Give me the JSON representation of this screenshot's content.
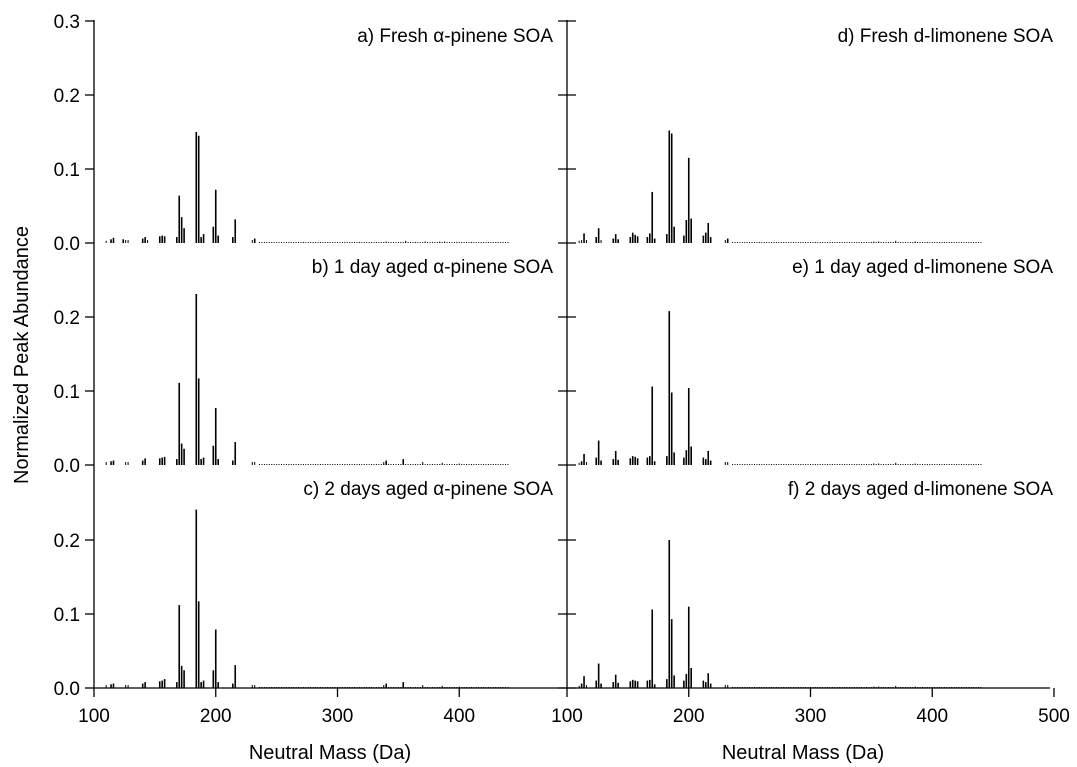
{
  "chart_data": {
    "type": "bar",
    "ylabel": "Normalized Peak Abundance",
    "xlabel": "Neutral Mass (Da)",
    "y_tick_labels": [
      "0.0",
      "0.1",
      "0.2",
      "0.3"
    ],
    "y_tick_values": [
      0.0,
      0.1,
      0.2,
      0.3
    ],
    "left_x_tick_labels": [
      "100",
      "200",
      "300",
      "400"
    ],
    "left_x_tick_values": [
      100,
      200,
      300,
      400
    ],
    "right_x_tick_labels": [
      "100",
      "200",
      "300",
      "400",
      "500"
    ],
    "right_x_tick_values": [
      100,
      200,
      300,
      400,
      500
    ],
    "panels": [
      {
        "label": "a) Fresh α-pinene SOA",
        "column": "left",
        "row": 0,
        "xlim": [
          100,
          500
        ],
        "ylim": [
          0,
          0.3
        ],
        "peaks": [
          [
            110,
            0.003
          ],
          [
            114,
            0.005
          ],
          [
            116,
            0.007
          ],
          [
            124,
            0.005
          ],
          [
            126,
            0.004
          ],
          [
            128,
            0.004
          ],
          [
            140,
            0.006
          ],
          [
            142,
            0.008
          ],
          [
            144,
            0.004
          ],
          [
            154,
            0.009
          ],
          [
            156,
            0.01
          ],
          [
            158,
            0.009
          ],
          [
            168,
            0.008
          ],
          [
            170,
            0.064
          ],
          [
            172,
            0.035
          ],
          [
            174,
            0.02
          ],
          [
            184,
            0.15
          ],
          [
            186,
            0.145
          ],
          [
            188,
            0.008
          ],
          [
            190,
            0.012
          ],
          [
            198,
            0.022
          ],
          [
            200,
            0.072
          ],
          [
            202,
            0.01
          ],
          [
            214,
            0.008
          ],
          [
            216,
            0.032
          ],
          [
            230,
            0.004
          ],
          [
            232,
            0.006
          ],
          [
            340,
            0.002
          ],
          [
            356,
            0.003
          ],
          [
            372,
            0.002
          ],
          [
            384,
            0.002
          ],
          [
            388,
            0.002
          ]
        ]
      },
      {
        "label": "b) 1 day aged α-pinene SOA",
        "column": "left",
        "row": 1,
        "xlim": [
          100,
          500
        ],
        "ylim": [
          0,
          0.3
        ],
        "peaks": [
          [
            110,
            0.004
          ],
          [
            114,
            0.005
          ],
          [
            116,
            0.006
          ],
          [
            126,
            0.004
          ],
          [
            128,
            0.004
          ],
          [
            140,
            0.006
          ],
          [
            142,
            0.009
          ],
          [
            154,
            0.009
          ],
          [
            156,
            0.01
          ],
          [
            158,
            0.011
          ],
          [
            168,
            0.008
          ],
          [
            170,
            0.111
          ],
          [
            172,
            0.029
          ],
          [
            174,
            0.022
          ],
          [
            184,
            0.231
          ],
          [
            186,
            0.117
          ],
          [
            188,
            0.008
          ],
          [
            190,
            0.01
          ],
          [
            198,
            0.026
          ],
          [
            200,
            0.077
          ],
          [
            202,
            0.008
          ],
          [
            214,
            0.006
          ],
          [
            216,
            0.031
          ],
          [
            230,
            0.004
          ],
          [
            232,
            0.004
          ],
          [
            338,
            0.004
          ],
          [
            340,
            0.006
          ],
          [
            354,
            0.008
          ],
          [
            370,
            0.004
          ],
          [
            386,
            0.003
          ],
          [
            400,
            0.002
          ]
        ]
      },
      {
        "label": "c) 2 days aged α-pinene SOA",
        "column": "left",
        "row": 2,
        "xlim": [
          100,
          500
        ],
        "ylim": [
          0,
          0.3
        ],
        "peaks": [
          [
            110,
            0.004
          ],
          [
            114,
            0.005
          ],
          [
            116,
            0.006
          ],
          [
            126,
            0.004
          ],
          [
            128,
            0.004
          ],
          [
            140,
            0.006
          ],
          [
            142,
            0.008
          ],
          [
            154,
            0.009
          ],
          [
            156,
            0.01
          ],
          [
            158,
            0.012
          ],
          [
            168,
            0.008
          ],
          [
            170,
            0.112
          ],
          [
            172,
            0.03
          ],
          [
            174,
            0.024
          ],
          [
            184,
            0.241
          ],
          [
            186,
            0.117
          ],
          [
            188,
            0.008
          ],
          [
            190,
            0.01
          ],
          [
            198,
            0.024
          ],
          [
            200,
            0.079
          ],
          [
            202,
            0.008
          ],
          [
            214,
            0.006
          ],
          [
            216,
            0.031
          ],
          [
            230,
            0.004
          ],
          [
            232,
            0.004
          ],
          [
            338,
            0.004
          ],
          [
            340,
            0.006
          ],
          [
            354,
            0.008
          ],
          [
            370,
            0.004
          ],
          [
            386,
            0.003
          ],
          [
            400,
            0.002
          ]
        ]
      },
      {
        "label": "d) Fresh d-limonene SOA",
        "column": "right",
        "row": 0,
        "xlim": [
          100,
          500
        ],
        "ylim": [
          0,
          0.3
        ],
        "peaks": [
          [
            110,
            0.003
          ],
          [
            112,
            0.004
          ],
          [
            114,
            0.013
          ],
          [
            116,
            0.004
          ],
          [
            124,
            0.008
          ],
          [
            126,
            0.02
          ],
          [
            128,
            0.004
          ],
          [
            138,
            0.006
          ],
          [
            140,
            0.012
          ],
          [
            142,
            0.005
          ],
          [
            152,
            0.008
          ],
          [
            154,
            0.014
          ],
          [
            156,
            0.011
          ],
          [
            158,
            0.009
          ],
          [
            166,
            0.008
          ],
          [
            168,
            0.013
          ],
          [
            170,
            0.069
          ],
          [
            172,
            0.006
          ],
          [
            182,
            0.012
          ],
          [
            184,
            0.152
          ],
          [
            186,
            0.148
          ],
          [
            188,
            0.022
          ],
          [
            196,
            0.01
          ],
          [
            198,
            0.031
          ],
          [
            200,
            0.115
          ],
          [
            202,
            0.033
          ],
          [
            212,
            0.01
          ],
          [
            214,
            0.014
          ],
          [
            216,
            0.027
          ],
          [
            218,
            0.008
          ],
          [
            230,
            0.004
          ],
          [
            232,
            0.006
          ],
          [
            352,
            0.002
          ],
          [
            356,
            0.002
          ],
          [
            370,
            0.003
          ],
          [
            386,
            0.002
          ]
        ]
      },
      {
        "label": "e) 1 day aged d-limonene SOA",
        "column": "right",
        "row": 1,
        "xlim": [
          100,
          500
        ],
        "ylim": [
          0,
          0.3
        ],
        "peaks": [
          [
            110,
            0.003
          ],
          [
            112,
            0.005
          ],
          [
            114,
            0.015
          ],
          [
            116,
            0.004
          ],
          [
            124,
            0.01
          ],
          [
            126,
            0.033
          ],
          [
            128,
            0.006
          ],
          [
            138,
            0.008
          ],
          [
            140,
            0.019
          ],
          [
            142,
            0.007
          ],
          [
            152,
            0.009
          ],
          [
            154,
            0.012
          ],
          [
            156,
            0.011
          ],
          [
            158,
            0.009
          ],
          [
            166,
            0.01
          ],
          [
            168,
            0.012
          ],
          [
            170,
            0.106
          ],
          [
            172,
            0.005
          ],
          [
            182,
            0.012
          ],
          [
            184,
            0.208
          ],
          [
            186,
            0.098
          ],
          [
            188,
            0.017
          ],
          [
            196,
            0.01
          ],
          [
            198,
            0.02
          ],
          [
            200,
            0.104
          ],
          [
            202,
            0.025
          ],
          [
            212,
            0.01
          ],
          [
            214,
            0.008
          ],
          [
            216,
            0.019
          ],
          [
            218,
            0.006
          ],
          [
            230,
            0.004
          ],
          [
            232,
            0.004
          ],
          [
            352,
            0.002
          ],
          [
            356,
            0.002
          ],
          [
            370,
            0.003
          ],
          [
            386,
            0.002
          ]
        ]
      },
      {
        "label": "f) 2 days aged d-limonene SOA",
        "column": "right",
        "row": 2,
        "xlim": [
          100,
          500
        ],
        "ylim": [
          0,
          0.3
        ],
        "peaks": [
          [
            110,
            0.003
          ],
          [
            112,
            0.006
          ],
          [
            114,
            0.016
          ],
          [
            116,
            0.004
          ],
          [
            124,
            0.01
          ],
          [
            126,
            0.033
          ],
          [
            128,
            0.006
          ],
          [
            138,
            0.008
          ],
          [
            140,
            0.018
          ],
          [
            142,
            0.007
          ],
          [
            152,
            0.009
          ],
          [
            154,
            0.011
          ],
          [
            156,
            0.01
          ],
          [
            158,
            0.009
          ],
          [
            166,
            0.01
          ],
          [
            168,
            0.011
          ],
          [
            170,
            0.106
          ],
          [
            172,
            0.005
          ],
          [
            182,
            0.012
          ],
          [
            184,
            0.2
          ],
          [
            186,
            0.093
          ],
          [
            188,
            0.017
          ],
          [
            196,
            0.01
          ],
          [
            198,
            0.019
          ],
          [
            200,
            0.11
          ],
          [
            202,
            0.027
          ],
          [
            212,
            0.01
          ],
          [
            214,
            0.008
          ],
          [
            216,
            0.02
          ],
          [
            218,
            0.006
          ],
          [
            230,
            0.004
          ],
          [
            232,
            0.004
          ],
          [
            352,
            0.002
          ],
          [
            356,
            0.002
          ],
          [
            370,
            0.003
          ],
          [
            386,
            0.002
          ]
        ]
      }
    ],
    "grid": false,
    "legend": "none"
  }
}
